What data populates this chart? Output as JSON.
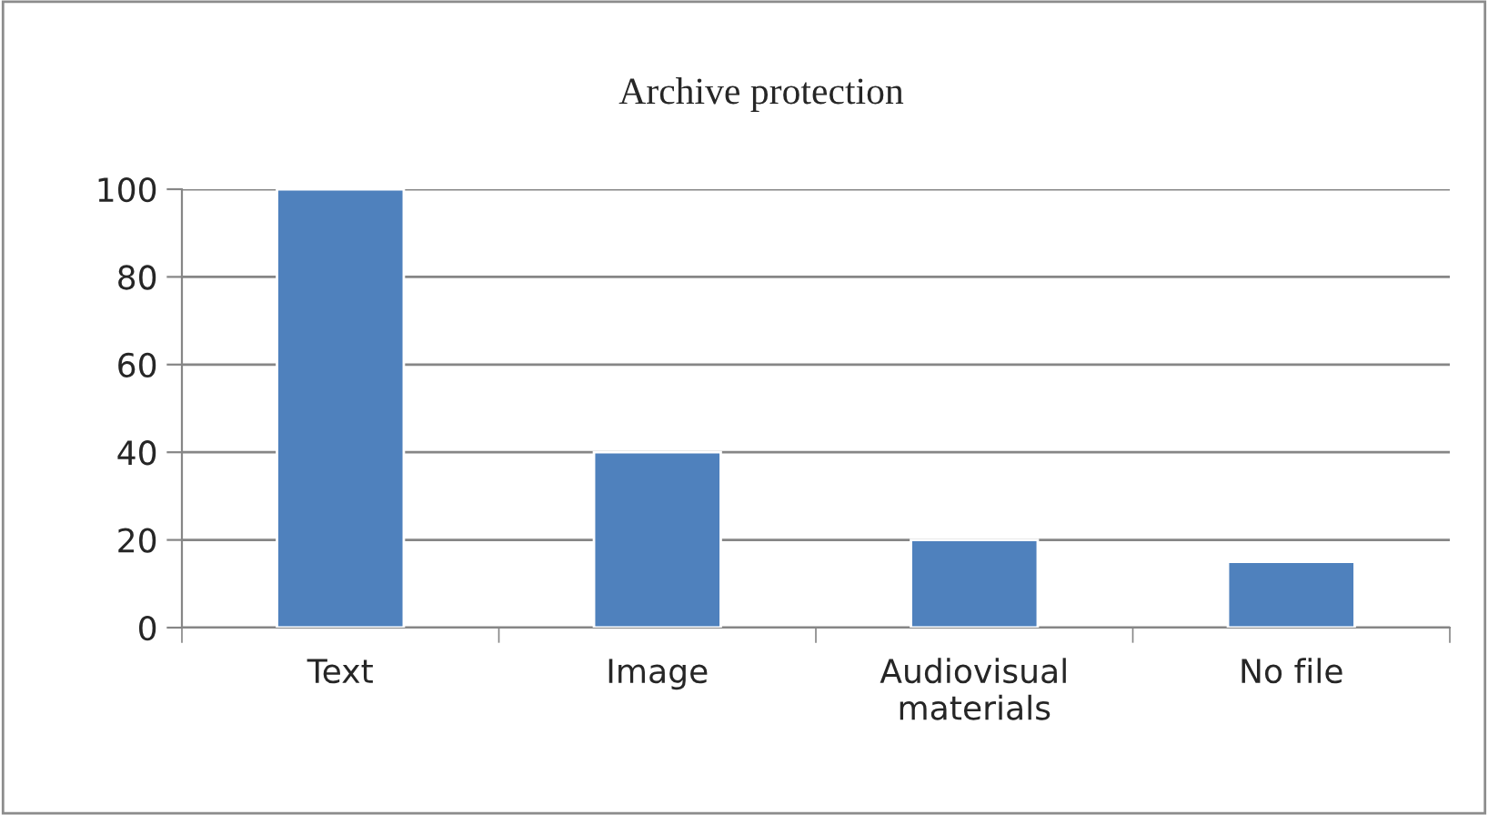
{
  "chart_data": {
    "type": "bar",
    "title": "Archive protection",
    "categories": [
      "Text",
      "Image",
      "Audiovisual\nmaterials",
      "No file"
    ],
    "values": [
      100,
      40,
      20,
      15
    ],
    "color": "#4f81bd",
    "ylim": [
      0,
      100
    ],
    "yticks": [
      0,
      20,
      40,
      60,
      80,
      100
    ],
    "grid": "y",
    "legend": false
  }
}
